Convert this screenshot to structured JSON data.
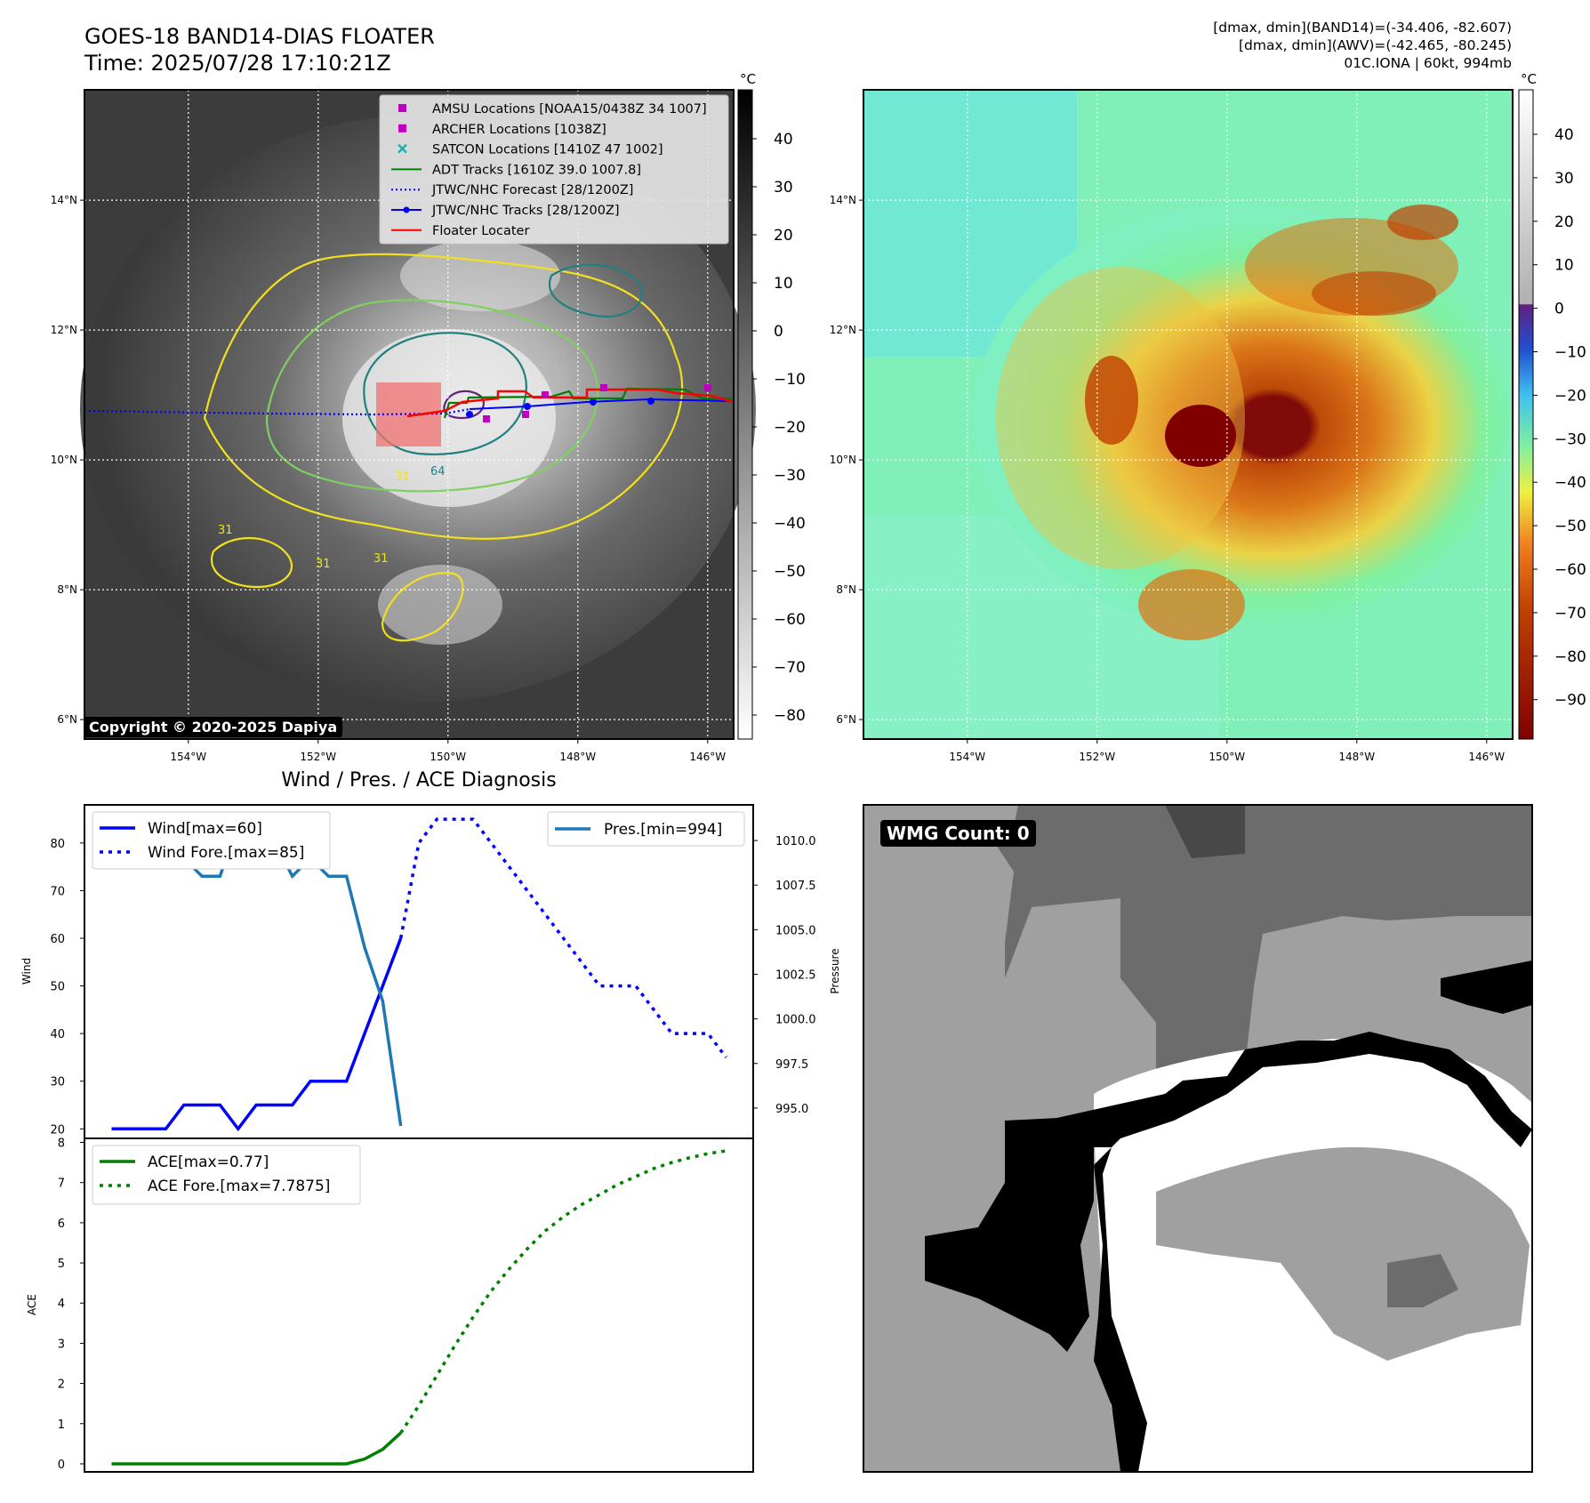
{
  "header": {
    "title_line1": "GOES-18 BAND14-DIAS FLOATER",
    "title_line2": "Time: 2025/07/28 17:10:21Z",
    "info_line1": "[dmax, dmin](BAND14)=(-34.406, -82.607)",
    "info_line2": "[dmax, dmin](AWV)=(-42.465, -80.245)",
    "info_line3": "01C.IONA | 60kt, 994mb"
  },
  "copyright": "Copyright © 2020-2025 Dapiya",
  "map": {
    "lat_ticks": [
      "14°N",
      "12°N",
      "10°N",
      "8°N",
      "6°N"
    ],
    "lat_values": [
      14,
      12,
      10,
      8,
      6
    ],
    "lon_ticks": [
      "154°W",
      "152°W",
      "150°W",
      "148°W",
      "146°W"
    ],
    "lon_values": [
      -154,
      -152,
      -150,
      -148,
      -146
    ],
    "lat_range": [
      5.7,
      15.7
    ],
    "lon_range": [
      -155.6,
      -145.6
    ],
    "legend": [
      {
        "label": "AMSU Locations [NOAA15/0438Z 34 1007]",
        "marker": "square",
        "color": "#c000c0"
      },
      {
        "label": "ARCHER Locations [1038Z]",
        "marker": "square",
        "color": "#c000c0"
      },
      {
        "label": "SATCON Locations [1410Z 47 1002]",
        "marker": "x",
        "color": "#20b0b0"
      },
      {
        "label": "ADT Tracks [1610Z 39.0 1007.8]",
        "marker": "line",
        "color": "#008000"
      },
      {
        "label": "JTWC/NHC Forecast [28/1200Z]",
        "marker": "dotted",
        "color": "#0000ff"
      },
      {
        "label": "JTWC/NHC Tracks [28/1200Z]",
        "marker": "dotline",
        "color": "#0000ff"
      },
      {
        "label": "Floater Locater",
        "marker": "line",
        "color": "#ff0000"
      }
    ],
    "contour_labels": [
      "64",
      "31",
      "31",
      "31",
      "31"
    ],
    "colors": {
      "amsu": "#c000c0",
      "satcon": "#20b0b0",
      "adt": "#008000",
      "jtwc": "#0000ff",
      "floater": "#ff0000",
      "contour_warm": "#f0e020",
      "contour_mid": "#80d060",
      "contour_cold": "#208080"
    }
  },
  "colorbar_gray": {
    "unit": "°C",
    "ticks": [
      "40",
      "30",
      "20",
      "10",
      "0",
      "−10",
      "−20",
      "−30",
      "−40",
      "−50",
      "−60",
      "−70",
      "−80"
    ]
  },
  "colorbar_color": {
    "unit": "°C",
    "ticks": [
      "40",
      "30",
      "20",
      "10",
      "0",
      "−10",
      "−20",
      "−30",
      "−40",
      "−50",
      "−60",
      "−70",
      "−80",
      "−90"
    ]
  },
  "wmg": {
    "label": "WMG Count: 0"
  },
  "chart_data": [
    {
      "type": "line",
      "title": "Wind / Pres. / ACE Diagnosis",
      "ylabel": "Wind",
      "y2label": "Pressure",
      "ylim": [
        18,
        88
      ],
      "y2lim": [
        993.3,
        1012.0
      ],
      "yticks": [
        20,
        30,
        40,
        50,
        60,
        70,
        80
      ],
      "y2ticks": [
        "995.0",
        "997.5",
        "1000.0",
        "1002.5",
        "1005.0",
        "1007.5",
        "1010.0"
      ],
      "legend_left": [
        "Wind[max=60]",
        "Wind Fore.[max=85]"
      ],
      "legend_right": [
        "Pres.[min=994]"
      ],
      "series": [
        {
          "name": "Wind[max=60]",
          "color": "#0000ff",
          "style": "solid",
          "x": [
            0,
            1,
            2,
            3,
            4,
            5,
            6,
            7,
            8,
            9,
            10,
            11,
            12,
            13,
            14,
            15,
            16
          ],
          "values": [
            20,
            20,
            20,
            20,
            25,
            25,
            25,
            20,
            25,
            25,
            25,
            30,
            30,
            30,
            40,
            50,
            60
          ]
        },
        {
          "name": "Wind Fore.[max=85]",
          "color": "#0000ff",
          "style": "dotted",
          "x": [
            16,
            17,
            18,
            19,
            20,
            21,
            22,
            23,
            24,
            25,
            26,
            27,
            28,
            29,
            30,
            31,
            32,
            33,
            34
          ],
          "values": [
            60,
            80,
            85,
            85,
            85,
            80,
            75,
            70,
            65,
            60,
            55,
            50,
            50,
            50,
            45,
            40,
            40,
            40,
            35
          ]
        },
        {
          "name": "Pres.[min=994]",
          "color": "#1f77b4",
          "style": "solid",
          "axis": "right",
          "x": [
            0,
            1,
            2,
            3,
            4,
            5,
            6,
            7,
            8,
            9,
            10,
            11,
            12,
            13,
            14,
            15,
            16
          ],
          "values": [
            1010.0,
            1010.0,
            1010.0,
            1009.0,
            1009.0,
            1008.0,
            1008.0,
            1011.0,
            1010.0,
            1010.0,
            1008.0,
            1009.0,
            1008.0,
            1008.0,
            1004.0,
            1001.0,
            994.0
          ]
        }
      ]
    },
    {
      "type": "line",
      "ylabel": "ACE",
      "ylim": [
        -0.2,
        8.1
      ],
      "yticks": [
        0,
        1,
        2,
        3,
        4,
        5,
        6,
        7,
        8
      ],
      "legend": [
        "ACE[max=0.77]",
        "ACE Fore.[max=7.7875]"
      ],
      "series": [
        {
          "name": "ACE[max=0.77]",
          "color": "#008000",
          "style": "solid",
          "x": [
            0,
            1,
            2,
            3,
            4,
            5,
            6,
            7,
            8,
            9,
            10,
            11,
            12,
            13,
            14,
            15,
            16
          ],
          "values": [
            0,
            0,
            0,
            0,
            0,
            0,
            0,
            0,
            0,
            0,
            0,
            0,
            0,
            0,
            0.12,
            0.36,
            0.77
          ]
        },
        {
          "name": "ACE Fore.[max=7.7875]",
          "color": "#008000",
          "style": "dotted",
          "x": [
            16,
            17,
            18,
            19,
            20,
            21,
            22,
            23,
            24,
            25,
            26,
            27,
            28,
            29,
            30,
            31,
            32,
            33,
            34
          ],
          "values": [
            0.77,
            1.45,
            2.2,
            2.95,
            3.65,
            4.3,
            4.85,
            5.35,
            5.8,
            6.15,
            6.45,
            6.7,
            6.95,
            7.15,
            7.35,
            7.5,
            7.62,
            7.72,
            7.79
          ]
        }
      ]
    }
  ]
}
